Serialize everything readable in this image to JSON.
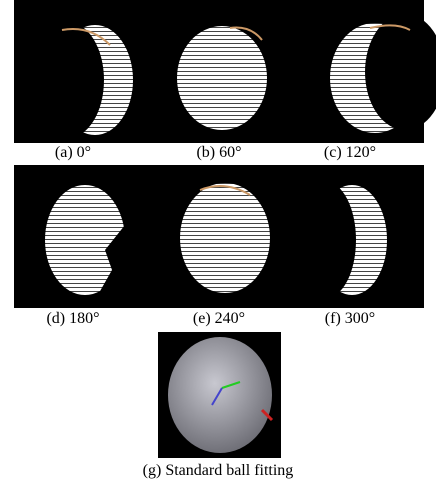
{
  "captions": [
    "(a) 0°",
    "(b) 60°",
    "(c) 120°",
    "(d) 180°",
    "(e) 240°",
    "(f) 300°"
  ],
  "bottom_caption": "(g) Standard ball fitting"
}
